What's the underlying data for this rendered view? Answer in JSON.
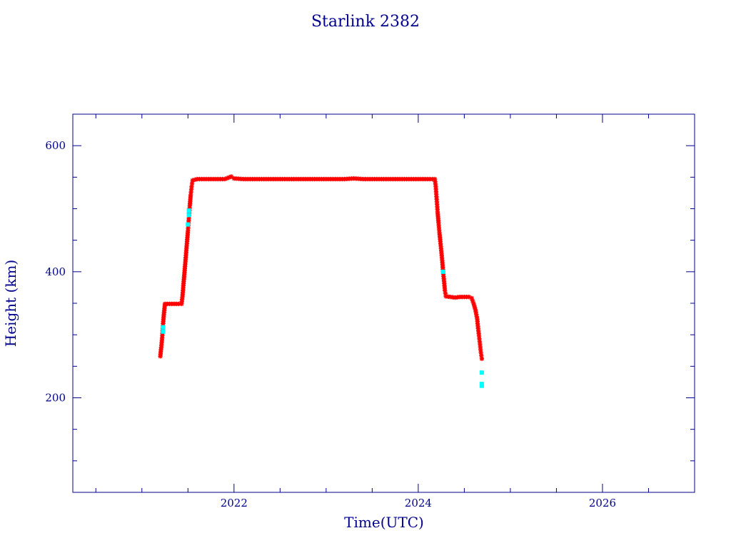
{
  "chart_data": {
    "type": "scatter",
    "title": "Starlink 2382",
    "xlabel": "Time(UTC)",
    "ylabel": "Height (km)",
    "xlim": [
      2020.25,
      2027.0
    ],
    "ylim": [
      50,
      650
    ],
    "x_ticks": [
      {
        "value": 2022,
        "label": "2022"
      },
      {
        "value": 2024,
        "label": "2024"
      },
      {
        "value": 2026,
        "label": "2026"
      }
    ],
    "y_ticks": [
      {
        "value": 200,
        "label": "200"
      },
      {
        "value": 400,
        "label": "400"
      },
      {
        "value": 600,
        "label": "600"
      }
    ],
    "grid": false,
    "colors": {
      "axis": "#00008b",
      "primary": "#ff0000",
      "secondary": "#00ffff"
    },
    "series": [
      {
        "color": "#ff0000",
        "marker": "star",
        "points": [
          [
            2021.2,
            266
          ],
          [
            2021.21,
            280
          ],
          [
            2021.22,
            295
          ],
          [
            2021.23,
            318
          ],
          [
            2021.24,
            335
          ],
          [
            2021.25,
            349
          ],
          [
            2021.3,
            349
          ],
          [
            2021.35,
            349
          ],
          [
            2021.4,
            349
          ],
          [
            2021.43,
            349
          ],
          [
            2021.44,
            360
          ],
          [
            2021.45,
            378
          ],
          [
            2021.46,
            395
          ],
          [
            2021.47,
            412
          ],
          [
            2021.48,
            430
          ],
          [
            2021.49,
            448
          ],
          [
            2021.5,
            465
          ],
          [
            2021.51,
            485
          ],
          [
            2021.52,
            505
          ],
          [
            2021.53,
            522
          ],
          [
            2021.54,
            535
          ],
          [
            2021.55,
            545
          ],
          [
            2021.6,
            547
          ],
          [
            2021.7,
            547
          ],
          [
            2021.8,
            547
          ],
          [
            2021.9,
            547
          ],
          [
            2021.97,
            551
          ],
          [
            2022.0,
            548
          ],
          [
            2022.1,
            547
          ],
          [
            2022.2,
            547
          ],
          [
            2022.3,
            547
          ],
          [
            2022.4,
            547
          ],
          [
            2022.5,
            547
          ],
          [
            2022.6,
            547
          ],
          [
            2022.7,
            547
          ],
          [
            2022.8,
            547
          ],
          [
            2022.9,
            547
          ],
          [
            2023.0,
            547
          ],
          [
            2023.1,
            547
          ],
          [
            2023.2,
            547
          ],
          [
            2023.3,
            548
          ],
          [
            2023.4,
            547
          ],
          [
            2023.5,
            547
          ],
          [
            2023.6,
            547
          ],
          [
            2023.7,
            547
          ],
          [
            2023.8,
            547
          ],
          [
            2023.9,
            547
          ],
          [
            2024.0,
            547
          ],
          [
            2024.1,
            547
          ],
          [
            2024.18,
            547
          ],
          [
            2024.19,
            535
          ],
          [
            2024.2,
            515
          ],
          [
            2024.21,
            495
          ],
          [
            2024.22,
            478
          ],
          [
            2024.23,
            462
          ],
          [
            2024.24,
            448
          ],
          [
            2024.25,
            433
          ],
          [
            2024.26,
            418
          ],
          [
            2024.27,
            400
          ],
          [
            2024.28,
            385
          ],
          [
            2024.29,
            370
          ],
          [
            2024.3,
            361
          ],
          [
            2024.35,
            360
          ],
          [
            2024.4,
            359
          ],
          [
            2024.45,
            360
          ],
          [
            2024.5,
            360
          ],
          [
            2024.55,
            360
          ],
          [
            2024.58,
            358
          ],
          [
            2024.6,
            350
          ],
          [
            2024.62,
            340
          ],
          [
            2024.64,
            325
          ],
          [
            2024.65,
            310
          ],
          [
            2024.66,
            298
          ],
          [
            2024.67,
            285
          ],
          [
            2024.68,
            272
          ],
          [
            2024.69,
            262
          ]
        ]
      },
      {
        "color": "#00ffff",
        "marker": "square",
        "points": [
          [
            2021.23,
            312
          ],
          [
            2021.23,
            305
          ],
          [
            2021.5,
            475
          ],
          [
            2021.51,
            490
          ],
          [
            2021.51,
            497
          ],
          [
            2024.27,
            400
          ],
          [
            2024.69,
            240
          ],
          [
            2024.69,
            222
          ],
          [
            2024.69,
            219
          ]
        ]
      }
    ]
  }
}
